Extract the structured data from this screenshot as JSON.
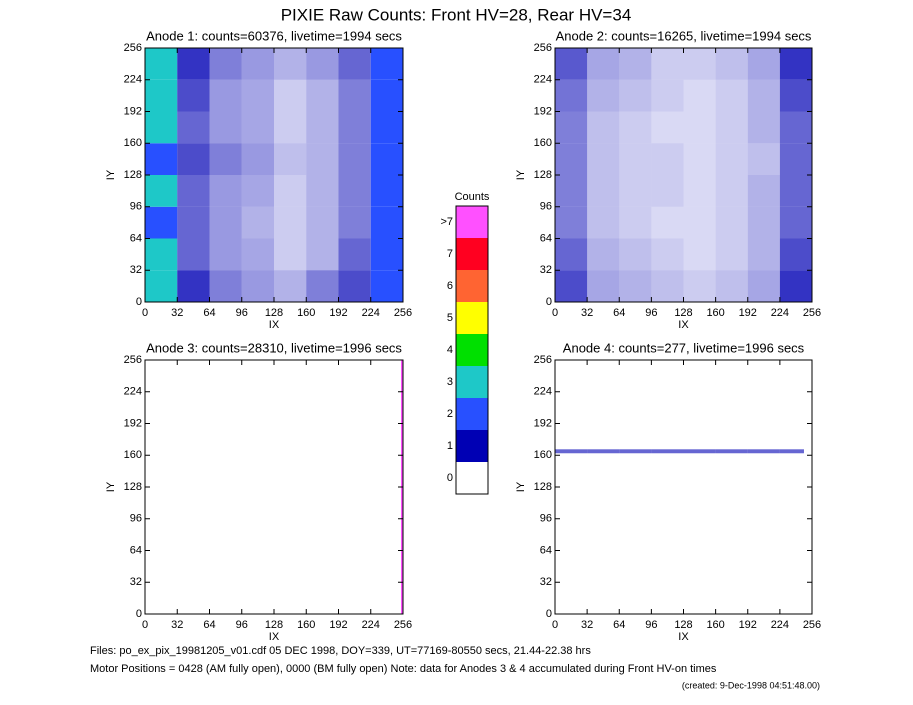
{
  "title": "PIXIE Raw Counts:  Front HV=28, Rear HV=34",
  "chart_data": [
    {
      "type": "heatmap",
      "title": "Anode 1: counts=60376, livetime=1994 secs",
      "x_label": "IX",
      "y_label": "IY",
      "xlim": [
        0,
        256
      ],
      "ylim": [
        0,
        256
      ],
      "xticks": [
        0,
        32,
        64,
        96,
        128,
        160,
        192,
        224,
        256
      ],
      "yticks": [
        0,
        32,
        64,
        96,
        128,
        160,
        192,
        224,
        256
      ],
      "xbins": [
        0,
        32,
        64,
        96,
        128,
        160,
        192,
        224,
        256
      ],
      "ybins": [
        0,
        32,
        64,
        96,
        128,
        160,
        192,
        224,
        256
      ],
      "z": [
        [
          2.4,
          0.8,
          0.5,
          0.4,
          0.3,
          0.5,
          0.7,
          1.5
        ],
        [
          2.2,
          0.6,
          0.4,
          0.35,
          0.2,
          0.3,
          0.6,
          1.3
        ],
        [
          2.0,
          0.6,
          0.4,
          0.3,
          0.2,
          0.3,
          0.5,
          1.2
        ],
        [
          2.1,
          0.6,
          0.4,
          0.35,
          0.2,
          0.3,
          0.5,
          1.2
        ],
        [
          2.0,
          0.7,
          0.5,
          0.4,
          0.25,
          0.3,
          0.5,
          1.1
        ],
        [
          2.1,
          0.6,
          0.4,
          0.35,
          0.2,
          0.3,
          0.5,
          1.2
        ],
        [
          2.2,
          0.7,
          0.4,
          0.35,
          0.2,
          0.3,
          0.5,
          1.2
        ],
        [
          2.4,
          0.8,
          0.5,
          0.4,
          0.3,
          0.4,
          0.6,
          1.4
        ]
      ]
    },
    {
      "type": "heatmap",
      "title": "Anode 2: counts=16265, livetime=1994 secs",
      "x_label": "IX",
      "y_label": "IY",
      "xlim": [
        0,
        256
      ],
      "ylim": [
        0,
        256
      ],
      "xticks": [
        0,
        32,
        64,
        96,
        128,
        160,
        192,
        224,
        256
      ],
      "yticks": [
        0,
        32,
        64,
        96,
        128,
        160,
        192,
        224,
        256
      ],
      "xbins": [
        0,
        32,
        64,
        96,
        128,
        160,
        192,
        224,
        256
      ],
      "ybins": [
        0,
        32,
        64,
        96,
        128,
        160,
        192,
        224,
        256
      ],
      "z": [
        [
          0.7,
          0.35,
          0.3,
          0.25,
          0.2,
          0.25,
          0.35,
          0.8
        ],
        [
          0.6,
          0.3,
          0.25,
          0.2,
          0.15,
          0.2,
          0.3,
          0.7
        ],
        [
          0.5,
          0.25,
          0.2,
          0.15,
          0.15,
          0.2,
          0.3,
          0.6
        ],
        [
          0.5,
          0.25,
          0.2,
          0.2,
          0.15,
          0.2,
          0.3,
          0.6
        ],
        [
          0.5,
          0.25,
          0.2,
          0.2,
          0.15,
          0.2,
          0.25,
          0.6
        ],
        [
          0.5,
          0.25,
          0.2,
          0.15,
          0.15,
          0.2,
          0.3,
          0.6
        ],
        [
          0.55,
          0.3,
          0.25,
          0.2,
          0.15,
          0.2,
          0.3,
          0.7
        ],
        [
          0.65,
          0.35,
          0.3,
          0.2,
          0.2,
          0.25,
          0.35,
          0.8
        ]
      ]
    },
    {
      "type": "heatmap",
      "title": "Anode 3: counts=28310, livetime=1996 secs",
      "x_label": "IX",
      "y_label": "IY",
      "xlim": [
        0,
        256
      ],
      "ylim": [
        0,
        256
      ],
      "xticks": [
        0,
        32,
        64,
        96,
        128,
        160,
        192,
        224,
        256
      ],
      "yticks": [
        0,
        32,
        64,
        96,
        128,
        160,
        192,
        224,
        256
      ],
      "xbins": [
        0,
        32,
        64,
        96,
        128,
        160,
        192,
        224,
        254,
        256
      ],
      "ybins": [
        0,
        32,
        64,
        96,
        128,
        160,
        192,
        224,
        256
      ],
      "z": [
        [
          0,
          0,
          0,
          0,
          0,
          0,
          0,
          0,
          9
        ],
        [
          0,
          0,
          0,
          0,
          0,
          0,
          0,
          0,
          9
        ],
        [
          0,
          0,
          0,
          0,
          0,
          0,
          0,
          0,
          9
        ],
        [
          0,
          0,
          0,
          0,
          0,
          0,
          0,
          0,
          9
        ],
        [
          0,
          0,
          0,
          0,
          0,
          0,
          0,
          0,
          9
        ],
        [
          0,
          0,
          0,
          0,
          0,
          0,
          0,
          0,
          9
        ],
        [
          0,
          0,
          0,
          0,
          0,
          0,
          0,
          0,
          9
        ],
        [
          0,
          0,
          0,
          0,
          0,
          0,
          0,
          0,
          9
        ]
      ]
    },
    {
      "type": "heatmap",
      "title": "Anode 4: counts=277, livetime=1996 secs",
      "x_label": "IX",
      "y_label": "IY",
      "xlim": [
        0,
        256
      ],
      "ylim": [
        0,
        256
      ],
      "xticks": [
        0,
        32,
        64,
        96,
        128,
        160,
        192,
        224,
        256
      ],
      "yticks": [
        0,
        32,
        64,
        96,
        128,
        160,
        192,
        224,
        256
      ],
      "xbins": [
        0,
        32,
        64,
        96,
        128,
        160,
        192,
        224,
        248
      ],
      "ybins": [
        0,
        162,
        166,
        256
      ],
      "z": [
        [
          0,
          0,
          0,
          0,
          0,
          0,
          0,
          0
        ],
        [
          0.6,
          0.6,
          0.6,
          0.6,
          0.6,
          0.6,
          0.6,
          0.6
        ],
        [
          0,
          0,
          0,
          0,
          0,
          0,
          0,
          0
        ]
      ]
    },
    {
      "type": "colorbar",
      "title": "Counts",
      "categories": [
        "0",
        "1",
        "2",
        "3",
        "4",
        "5",
        "6",
        "7",
        ">7"
      ],
      "colors": [
        "#ffffff",
        "#0000b4",
        "#2850ff",
        "#1ec8c8",
        "#00e000",
        "#ffff00",
        "#ff6432",
        "#ff0020",
        "#ff50ff"
      ]
    }
  ],
  "footer": [
    "Files: po_ex_pix_19981205_v01.cdf    05 DEC 1998, DOY=339, UT=77169-80550 secs, 21.44-22.38 hrs",
    "Motor Positions = 0428 (AM fully open), 0000 (BM fully open)    Note: data for Anodes 3 & 4 accumulated during Front HV-on times",
    "(created:  9-Dec-1998 04:51:48.00)"
  ]
}
